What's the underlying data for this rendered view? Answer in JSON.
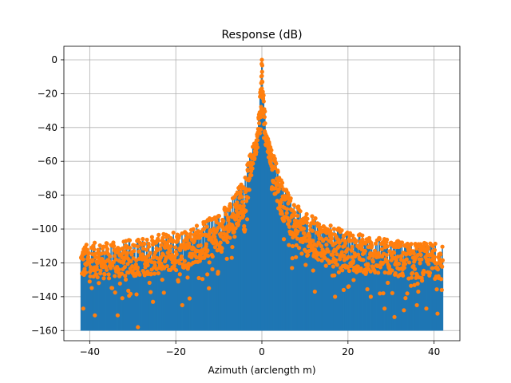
{
  "chart_data": {
    "type": "stem",
    "title": "Response (dB)",
    "xlabel": "Azimuth (arclength m)",
    "ylabel": "",
    "xlim": [
      -46,
      46
    ],
    "ylim": [
      -166,
      8
    ],
    "xticks": [
      -40,
      -20,
      0,
      20,
      40
    ],
    "yticks": [
      0,
      -20,
      -40,
      -60,
      -80,
      -100,
      -120,
      -140,
      -160
    ],
    "xtick_labels": [
      "−40",
      "−20",
      "0",
      "20",
      "40"
    ],
    "ytick_labels": [
      "0",
      "−20",
      "−40",
      "−60",
      "−80",
      "−100",
      "−120",
      "−140",
      "−160"
    ],
    "grid": true,
    "baseline": -160,
    "stem_color": "#1f77b4",
    "marker_color": "#ff7f0e",
    "envelope": {
      "x": [
        -42,
        -40,
        -35,
        -30,
        -25,
        -20,
        -15,
        -10,
        -8,
        -6,
        -4,
        -3,
        -2,
        -1,
        -0.5,
        0,
        0.5,
        1,
        2,
        3,
        4,
        6,
        8,
        10,
        15,
        20,
        25,
        30,
        35,
        40,
        42
      ],
      "upper": [
        -110,
        -108,
        -108,
        -106,
        -104,
        -101,
        -97,
        -90,
        -85,
        -78,
        -68,
        -58,
        -50,
        -42,
        -20,
        0,
        -20,
        -42,
        -50,
        -58,
        -68,
        -78,
        -85,
        -90,
        -97,
        -101,
        -104,
        -106,
        -108,
        -108,
        -110
      ],
      "lower": [
        -130,
        -128,
        -130,
        -128,
        -127,
        -125,
        -120,
        -115,
        -110,
        -100,
        -90,
        -80,
        -62,
        -52,
        -45,
        -30,
        -45,
        -52,
        -62,
        -80,
        -90,
        -100,
        -110,
        -115,
        -120,
        -125,
        -127,
        -128,
        -130,
        -128,
        -130
      ]
    },
    "notable_points": {
      "x": [
        -41.5,
        -38.8,
        -33.5,
        -28.8,
        -25.3,
        -18.5,
        -16.8,
        -12.3,
        -7.0,
        0,
        7.0,
        12.3,
        17.0,
        19.0,
        25.3,
        28.5,
        30.8,
        33.0,
        36.0,
        38.2,
        40.8
      ],
      "y": [
        -147,
        -151,
        -151,
        -158,
        -143,
        -145,
        -141,
        -135,
        -117,
        0,
        -123,
        -137,
        -140,
        -136,
        -140,
        -147,
        -152,
        -148,
        -145,
        -147,
        -150
      ]
    }
  }
}
